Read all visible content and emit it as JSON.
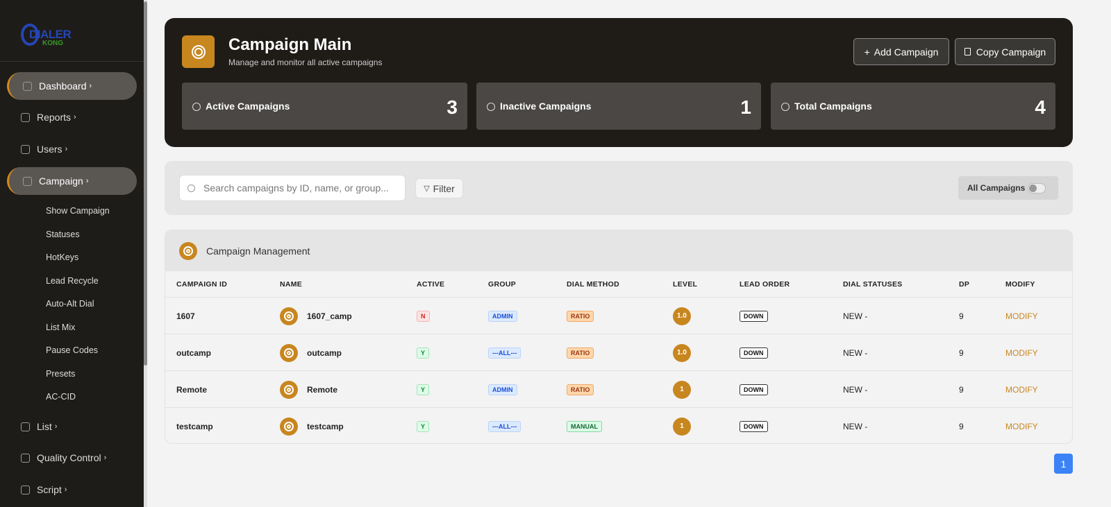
{
  "sidebar": {
    "logo": {
      "line1": "DIALER",
      "line2": "KONG"
    },
    "nav_top": [
      "Dashboard",
      "Reports",
      "Users",
      "Campaign"
    ],
    "submenu": [
      "Show Campaign",
      "Statuses",
      "HotKeys",
      "Lead Recycle",
      "Auto-Alt Dial",
      "List Mix",
      "Pause Codes",
      "Presets",
      "AC-CID"
    ],
    "nav_bottom": [
      "List",
      "Quality Control",
      "Script"
    ]
  },
  "header": {
    "title": "Campaign Main",
    "subtitle": "Manage and monitor all active campaigns",
    "buttons": [
      "Add Campaign",
      "Copy Campaign"
    ],
    "stats": [
      {
        "label": "Active Campaigns",
        "value": 3
      },
      {
        "label": "Inactive Campaigns",
        "value": 1
      },
      {
        "label": "Total Campaigns",
        "value": 4
      }
    ]
  },
  "toolbar": {
    "search_placeholder": "Search campaigns by ID, name, or group...",
    "filter": "Filter",
    "toggle_label": "All Campaigns"
  },
  "table": {
    "title": "Campaign Management",
    "columns": [
      "CAMPAIGN ID",
      "NAME",
      "ACTIVE",
      "GROUP",
      "DIAL METHOD",
      "LEVEL",
      "LEAD ORDER",
      "DIAL STATUSES",
      "DP",
      "MODIFY"
    ],
    "rows": [
      [
        "1607",
        "1607_camp",
        "N",
        "ADMIN",
        "RATIO",
        "1.0",
        "DOWN",
        "NEW -",
        "9",
        "MODIFY"
      ],
      [
        "outcamp",
        "outcamp",
        "Y",
        "---ALL---",
        "RATIO",
        "1.0",
        "DOWN",
        "NEW -",
        "9",
        "MODIFY"
      ],
      [
        "Remote",
        "Remote",
        "Y",
        "ADMIN",
        "RATIO",
        "1",
        "DOWN",
        "NEW -",
        "9",
        "MODIFY"
      ],
      [
        "testcamp",
        "testcamp",
        "Y",
        "---ALL---",
        "MANUAL",
        "1",
        "DOWN",
        "NEW -",
        "9",
        "MODIFY"
      ]
    ]
  },
  "pagination": {
    "pages": [
      1
    ]
  }
}
